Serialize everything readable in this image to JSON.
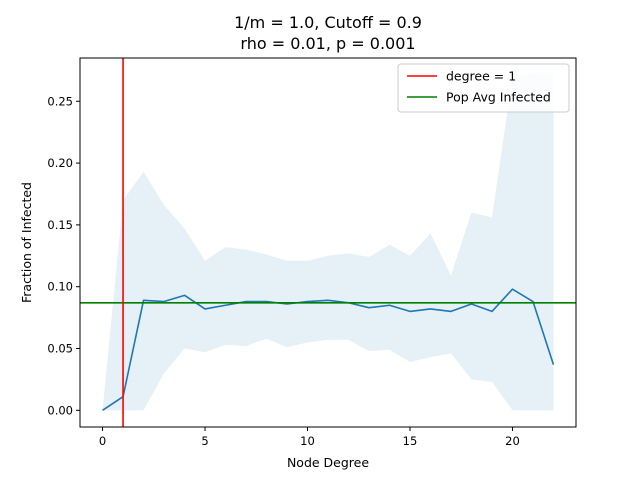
{
  "chart_data": {
    "type": "line",
    "title": "1/m = 1.0, Cutoff = 0.9",
    "subtitle": "rho = 0.01, p = 0.001",
    "xlabel": "Node Degree",
    "ylabel": "Fraction of Infected",
    "xlim": [
      -1.1,
      23.1
    ],
    "ylim": [
      -0.0135,
      0.285
    ],
    "xticks": [
      0,
      5,
      10,
      15,
      20
    ],
    "yticks": [
      0.0,
      0.05,
      0.1,
      0.15,
      0.2,
      0.25
    ],
    "ytick_labels": [
      "0.00",
      "0.05",
      "0.10",
      "0.15",
      "0.20",
      "0.25"
    ],
    "grid": false,
    "legend_position": "top-right",
    "series": [
      {
        "name": "",
        "kind": "line",
        "color": "#1f77b4",
        "x": [
          0,
          1,
          2,
          3,
          4,
          5,
          6,
          7,
          8,
          9,
          10,
          11,
          12,
          13,
          14,
          15,
          16,
          17,
          18,
          19,
          20,
          21,
          22
        ],
        "values": [
          0.0,
          0.011,
          0.089,
          0.088,
          0.093,
          0.082,
          0.085,
          0.088,
          0.088,
          0.086,
          0.088,
          0.089,
          0.087,
          0.083,
          0.085,
          0.08,
          0.082,
          0.08,
          0.086,
          0.08,
          0.098,
          0.088,
          0.037
        ]
      },
      {
        "name": "",
        "kind": "band",
        "color": "#1f77b4",
        "opacity": 0.11,
        "x": [
          0,
          1,
          2,
          3,
          4,
          5,
          6,
          7,
          8,
          9,
          10,
          11,
          12,
          13,
          14,
          15,
          16,
          17,
          18,
          19,
          20,
          21,
          22
        ],
        "upper": [
          0.0,
          0.17,
          0.193,
          0.166,
          0.147,
          0.121,
          0.132,
          0.13,
          0.126,
          0.121,
          0.121,
          0.125,
          0.127,
          0.124,
          0.134,
          0.125,
          0.143,
          0.109,
          0.16,
          0.156,
          0.27,
          0.273,
          0.273
        ],
        "lower": [
          0.0,
          0.0,
          0.0,
          0.03,
          0.05,
          0.047,
          0.053,
          0.052,
          0.058,
          0.051,
          0.055,
          0.057,
          0.057,
          0.048,
          0.049,
          0.039,
          0.043,
          0.046,
          0.025,
          0.023,
          0.0,
          0.0,
          0.0
        ]
      },
      {
        "name": "degree = 1",
        "kind": "vline",
        "color": "#ff0000",
        "x_value": 1
      },
      {
        "name": "Pop Avg Infected",
        "kind": "hline",
        "color": "#008000",
        "y_value": 0.087
      }
    ]
  }
}
